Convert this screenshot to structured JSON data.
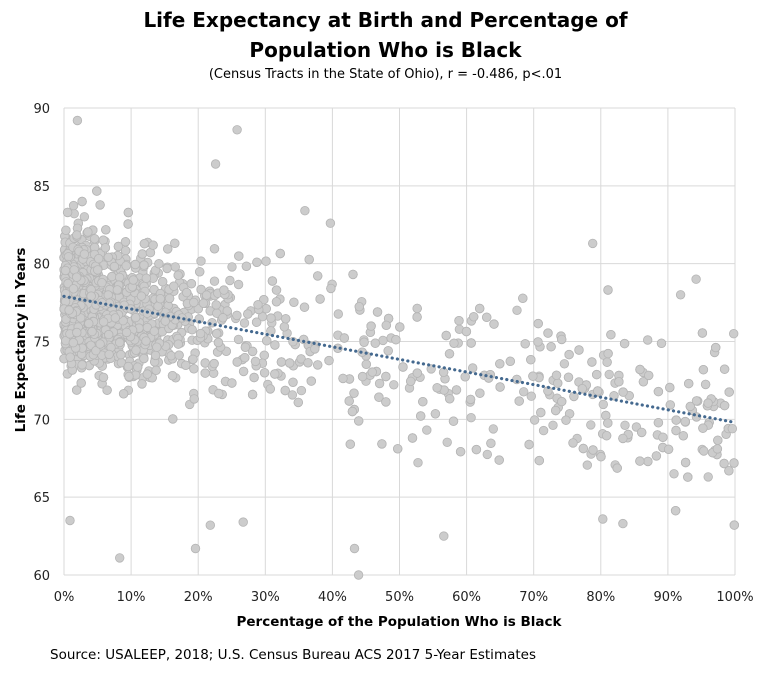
{
  "chart_data": {
    "type": "scatter",
    "title_line1": "Life Expectancy at Birth and Percentage of",
    "title_line2": "Population Who is Black",
    "subtitle": "(Census Tracts in the State of Ohio), r = -0.486, p<.01",
    "xlabel": "Percentage of the Population Who is Black",
    "ylabel": "Life Expectancy in Years",
    "xlim": [
      0,
      100
    ],
    "ylim": [
      60,
      90
    ],
    "x_ticks": [
      "0%",
      "10%",
      "20%",
      "30%",
      "40%",
      "50%",
      "60%",
      "70%",
      "80%",
      "90%",
      "100%"
    ],
    "y_ticks": [
      "60",
      "65",
      "70",
      "75",
      "80",
      "85",
      "90"
    ],
    "grid": true,
    "colors": {
      "points": "#cccccc",
      "point_edge": "#b5b5b5",
      "trendline": "#44698f",
      "grid": "#d9d9d9"
    },
    "trendline": {
      "type": "linear",
      "x": [
        0,
        100
      ],
      "y": [
        77.9,
        69.8
      ]
    },
    "notable_points": [
      {
        "x": 2,
        "y": 89.2
      },
      {
        "x": 25.8,
        "y": 88.6
      },
      {
        "x": 22.6,
        "y": 86.4
      },
      {
        "x": 35.9,
        "y": 83.4
      },
      {
        "x": 39.7,
        "y": 82.6
      },
      {
        "x": 78.8,
        "y": 81.3
      },
      {
        "x": 43.9,
        "y": 60.0
      },
      {
        "x": 8.3,
        "y": 61.1
      },
      {
        "x": 19.6,
        "y": 61.7
      },
      {
        "x": 43.3,
        "y": 61.7
      },
      {
        "x": 80.3,
        "y": 63.6
      },
      {
        "x": 83.3,
        "y": 63.3
      },
      {
        "x": 21.8,
        "y": 63.2
      },
      {
        "x": 26.7,
        "y": 63.4
      },
      {
        "x": 0.9,
        "y": 63.5
      },
      {
        "x": 56.6,
        "y": 62.5
      },
      {
        "x": 91.9,
        "y": 78.0
      },
      {
        "x": 94.2,
        "y": 79.0
      },
      {
        "x": 99.8,
        "y": 75.5
      },
      {
        "x": 99.6,
        "y": 69.4
      },
      {
        "x": 96.0,
        "y": 66.3
      }
    ]
  },
  "footer": {
    "source": "Source: USALEEP, 2018; U.S. Census Bureau ACS 2017 5-Year Estimates"
  }
}
